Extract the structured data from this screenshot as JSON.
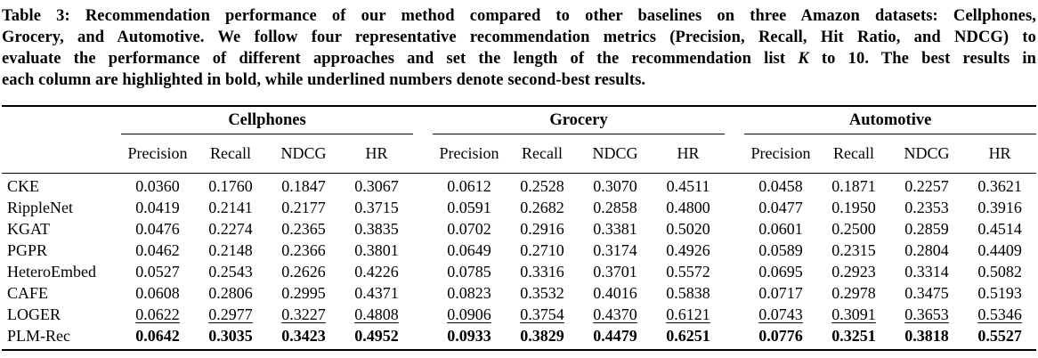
{
  "colors": {
    "text": "#000000",
    "background": "#ffffff",
    "rule": "#000000"
  },
  "caption": {
    "line1": "Table 3: Recommendation performance of our method compared to other baselines on three Amazon datasets: Cellphones,",
    "line2": "Grocery, and Automotive. We follow four representative recommendation metrics (Precision, Recall, Hit Ratio, and NDCG) to",
    "line3_before_k": "evaluate the performance of different approaches and set the length of the recommendation list ",
    "k_symbol": "K",
    "line3_after_k": " to 10. The best results in",
    "line4": "each column are highlighted in bold, while underlined numbers denote second-best results."
  },
  "table": {
    "groups": [
      {
        "label": "Cellphones",
        "metrics": [
          "Precision",
          "Recall",
          "NDCG",
          "HR"
        ]
      },
      {
        "label": "Grocery",
        "metrics": [
          "Precision",
          "Recall",
          "NDCG",
          "HR"
        ]
      },
      {
        "label": "Automotive",
        "metrics": [
          "Precision",
          "Recall",
          "NDCG",
          "HR"
        ]
      }
    ],
    "rows": [
      {
        "method": "CKE",
        "style": "normal",
        "values": [
          "0.0360",
          "0.1760",
          "0.1847",
          "0.3067",
          "0.0612",
          "0.2528",
          "0.3070",
          "0.4511",
          "0.0458",
          "0.1871",
          "0.2257",
          "0.3621"
        ]
      },
      {
        "method": "RippleNet",
        "style": "normal",
        "values": [
          "0.0419",
          "0.2141",
          "0.2177",
          "0.3715",
          "0.0591",
          "0.2682",
          "0.2858",
          "0.4800",
          "0.0477",
          "0.1950",
          "0.2353",
          "0.3916"
        ]
      },
      {
        "method": "KGAT",
        "style": "normal",
        "values": [
          "0.0476",
          "0.2274",
          "0.2365",
          "0.3835",
          "0.0702",
          "0.2916",
          "0.3381",
          "0.5020",
          "0.0601",
          "0.2500",
          "0.2859",
          "0.4514"
        ]
      },
      {
        "method": "PGPR",
        "style": "normal",
        "values": [
          "0.0462",
          "0.2148",
          "0.2366",
          "0.3801",
          "0.0649",
          "0.2710",
          "0.3174",
          "0.4926",
          "0.0589",
          "0.2315",
          "0.2804",
          "0.4409"
        ]
      },
      {
        "method": "HeteroEmbed",
        "style": "normal",
        "values": [
          "0.0527",
          "0.2543",
          "0.2626",
          "0.4226",
          "0.0785",
          "0.3316",
          "0.3701",
          "0.5572",
          "0.0695",
          "0.2923",
          "0.3314",
          "0.5082"
        ]
      },
      {
        "method": "CAFE",
        "style": "normal",
        "values": [
          "0.0608",
          "0.2806",
          "0.2995",
          "0.4371",
          "0.0823",
          "0.3532",
          "0.4016",
          "0.5838",
          "0.0717",
          "0.2978",
          "0.3475",
          "0.5193"
        ]
      },
      {
        "method": "LOGER",
        "style": "underline",
        "values": [
          "0.0622",
          "0.2977",
          "0.3227",
          "0.4808",
          "0.0906",
          "0.3754",
          "0.4370",
          "0.6121",
          "0.0743",
          "0.3091",
          "0.3653",
          "0.5346"
        ]
      },
      {
        "method": "PLM-Rec",
        "style": "bold",
        "values": [
          "0.0642",
          "0.3035",
          "0.3423",
          "0.4952",
          "0.0933",
          "0.3829",
          "0.4479",
          "0.6251",
          "0.0776",
          "0.3251",
          "0.3818",
          "0.5527"
        ]
      }
    ]
  }
}
